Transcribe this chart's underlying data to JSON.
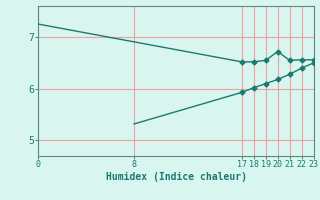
{
  "xlabel": "Humidex (Indice chaleur)",
  "bg_color": "#d8f5f0",
  "line_color": "#1a7a6e",
  "grid_color": "#f0a0a0",
  "axis_color": "#5a8a80",
  "line1_x": [
    0,
    17,
    18,
    19,
    20,
    21,
    22,
    23
  ],
  "line1_y": [
    7.25,
    6.52,
    6.52,
    6.55,
    6.72,
    6.55,
    6.56,
    6.56
  ],
  "line2_x": [
    8,
    17,
    18,
    19,
    20,
    21,
    22,
    23
  ],
  "line2_y": [
    5.32,
    5.93,
    6.02,
    6.1,
    6.18,
    6.28,
    6.4,
    6.5
  ],
  "xticks": [
    0,
    8,
    17,
    18,
    19,
    20,
    21,
    22,
    23
  ],
  "yticks": [
    5,
    6,
    7
  ],
  "xlim": [
    0,
    23
  ],
  "ylim": [
    4.7,
    7.6
  ],
  "marker": "D",
  "marker_size": 2.5,
  "marker_start_x": 17,
  "fontsize": 7
}
